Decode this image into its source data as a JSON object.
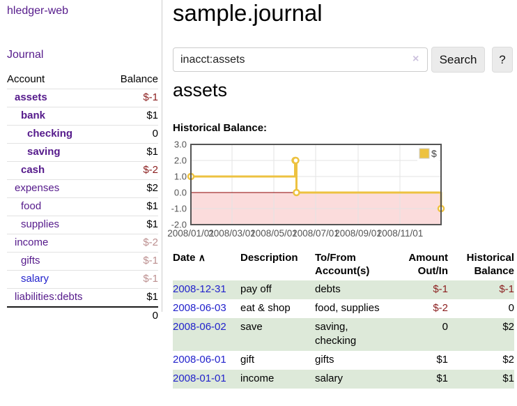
{
  "app": {
    "title": "hledger-web",
    "nav_journal": "Journal"
  },
  "sidebar": {
    "header": {
      "account": "Account",
      "balance": "Balance"
    },
    "accounts": [
      {
        "name": "assets",
        "balance": "$-1"
      },
      {
        "name": "bank",
        "balance": "$1"
      },
      {
        "name": "checking",
        "balance": "0"
      },
      {
        "name": "saving",
        "balance": "$1"
      },
      {
        "name": "cash",
        "balance": "$-2"
      },
      {
        "name": "expenses",
        "balance": "$2"
      },
      {
        "name": "food",
        "balance": "$1"
      },
      {
        "name": "supplies",
        "balance": "$1"
      },
      {
        "name": "income",
        "balance": "$-2"
      },
      {
        "name": "gifts",
        "balance": "$-1"
      },
      {
        "name": "salary",
        "balance": "$-1"
      },
      {
        "name": "liabilities:debts",
        "balance": "$1"
      }
    ],
    "total": "0"
  },
  "main": {
    "title": "sample.journal",
    "search": {
      "value": "inacct:assets",
      "clear_icon": "×",
      "button": "Search",
      "help_button": "?"
    },
    "account_heading": "assets",
    "chart_label": "Historical Balance:"
  },
  "chart_data": {
    "type": "line",
    "steps": true,
    "title": "Historical Balance",
    "series": [
      {
        "name": "$",
        "color": "#edc240",
        "points": [
          {
            "date": "2008-01-01",
            "value": 1
          },
          {
            "date": "2008-06-01",
            "value": 2
          },
          {
            "date": "2008-06-02",
            "value": 2
          },
          {
            "date": "2008-06-03",
            "value": 0
          },
          {
            "date": "2008-12-31",
            "value": -1
          }
        ]
      }
    ],
    "xlim": [
      "2008-01-01",
      "2008-12-31"
    ],
    "ylim": [
      -2,
      3
    ],
    "x_ticks": [
      {
        "date": "2008-01-01",
        "label": "2008/01/01"
      },
      {
        "date": "2008-03-01",
        "label": "2008/03/01"
      },
      {
        "date": "2008-05-01",
        "label": "2008/05/01"
      },
      {
        "date": "2008-07-01",
        "label": "2008/07/01"
      },
      {
        "date": "2008-09-01",
        "label": "2008/09/01"
      },
      {
        "date": "2008-11-01",
        "label": "2008/11/01"
      }
    ],
    "y_ticks": [
      {
        "value": 3,
        "label": "3.0"
      },
      {
        "value": 2,
        "label": "2.0"
      },
      {
        "value": 1,
        "label": "1.0"
      },
      {
        "value": 0,
        "label": "0.0"
      },
      {
        "value": -1,
        "label": "-1.0"
      },
      {
        "value": -2,
        "label": "-2.0"
      }
    ],
    "grid": true,
    "legend_position": "top-right",
    "legend_label": "$",
    "negative_region_color": "#fbdcdc",
    "zero_line_color": "#8b0000",
    "grid_color": "#e3e3e3",
    "border_color": "#545454",
    "axis_text_color": "#545454"
  },
  "register": {
    "headers": {
      "date": "Date",
      "sort_icon": "∧",
      "description": "Description",
      "accounts": "To/From Account(s)",
      "amount": "Amount Out/In",
      "balance": "Historical Balance"
    },
    "rows": [
      {
        "date": "2008-12-31",
        "description": "pay off",
        "accounts": "debts",
        "amount": "$-1",
        "balance": "$-1"
      },
      {
        "date": "2008-06-03",
        "description": "eat & shop",
        "accounts": "food, supplies",
        "amount": "$-2",
        "balance": "0"
      },
      {
        "date": "2008-06-02",
        "description": "save",
        "accounts": "saving, checking",
        "amount": "0",
        "balance": "$2"
      },
      {
        "date": "2008-06-01",
        "description": "gift",
        "accounts": "gifts",
        "amount": "$1",
        "balance": "$2"
      },
      {
        "date": "2008-01-01",
        "description": "income",
        "accounts": "salary",
        "amount": "$1",
        "balance": "$1"
      }
    ]
  },
  "colors": {
    "link_purple": "#551a8b",
    "link_blue": "#2222cc",
    "negative_strong": "#8b1e1e",
    "negative_soft": "#bc8f8f",
    "row_stripe_green": "#dde9d9",
    "chart_line_gold": "#edc240"
  }
}
